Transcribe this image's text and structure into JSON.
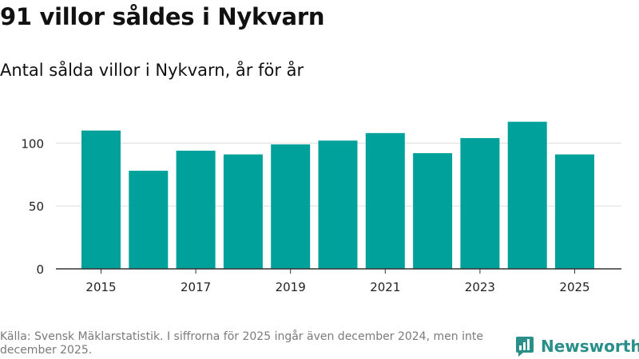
{
  "header": {
    "title": "91 villor såldes i Nykvarn",
    "subtitle": "Antal sålda villor i Nykvarn, år för år"
  },
  "chart_data": {
    "type": "bar",
    "title": "91 villor såldes i Nykvarn",
    "subtitle": "Antal sålda villor i Nykvarn, år för år",
    "categories": [
      "2015",
      "2016",
      "2017",
      "2018",
      "2019",
      "2020",
      "2021",
      "2022",
      "2023",
      "2024",
      "2025"
    ],
    "values": [
      110,
      78,
      94,
      91,
      99,
      102,
      108,
      92,
      104,
      117,
      91
    ],
    "x_tick_labels": [
      "2015",
      "2017",
      "2019",
      "2021",
      "2023",
      "2025"
    ],
    "y_ticks": [
      0,
      50,
      100
    ],
    "ylim": [
      0,
      125
    ],
    "xlabel": "",
    "ylabel": "",
    "grid": true,
    "bar_color": "#00a19a",
    "gridline_color": "#dddddd"
  },
  "footer": {
    "source": "Källa: Svensk Mäklarstatistik. I siffrorna för 2025 ingår även december 2024, men inte december 2025."
  },
  "logo": {
    "icon": "newsworthy-logo-icon",
    "text": "Newsworthy",
    "color": "#2a8f8a"
  }
}
